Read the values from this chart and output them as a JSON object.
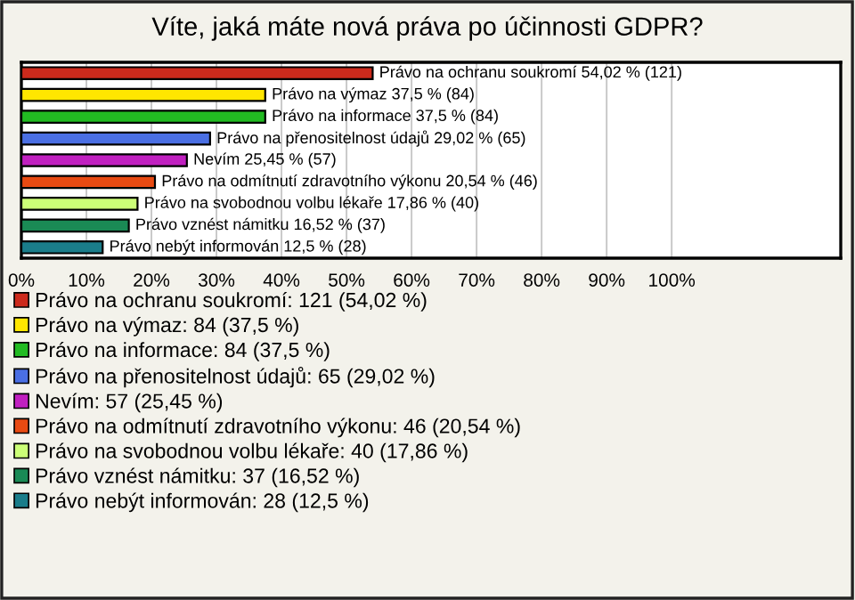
{
  "chart_data": {
    "type": "bar",
    "orientation": "horizontal",
    "title": "Víte, jaká máte nová práva po účinnosti GDPR?",
    "categories": [
      null,
      null,
      null,
      null,
      null,
      null,
      null,
      null,
      null
    ],
    "series": [
      {
        "name": "Právo na ochranu soukromí: 121 (54,02 %)",
        "color": "#cc2a1c",
        "values": [
          54.02,
          null,
          null,
          null,
          null,
          null,
          null,
          null,
          null
        ],
        "value_labels": [
          "Právo na ochranu soukromí 54,02 % (121)",
          null,
          null,
          null,
          null,
          null,
          null,
          null,
          null
        ]
      },
      {
        "name": "Právo na výmaz: 84 (37,5 %)",
        "color": "#ffe600",
        "values": [
          null,
          37.5,
          null,
          null,
          null,
          null,
          null,
          null,
          null
        ],
        "value_labels": [
          null,
          "Právo na výmaz 37,5 % (84)",
          null,
          null,
          null,
          null,
          null,
          null,
          null
        ]
      },
      {
        "name": "Právo na informace: 84 (37,5 %)",
        "color": "#22bb22",
        "values": [
          null,
          null,
          37.5,
          null,
          null,
          null,
          null,
          null,
          null
        ],
        "value_labels": [
          null,
          null,
          "Právo na informace 37,5 % (84)",
          null,
          null,
          null,
          null,
          null,
          null
        ]
      },
      {
        "name": "Právo na přenositelnost údajů: 65 (29,02 %)",
        "color": "#4a6fe3",
        "values": [
          null,
          null,
          null,
          29.02,
          null,
          null,
          null,
          null,
          null
        ],
        "value_labels": [
          null,
          null,
          null,
          "Právo na přenositelnost údajů 29,02 % (65)",
          null,
          null,
          null,
          null,
          null
        ]
      },
      {
        "name": "Nevím: 57 (25,45 %)",
        "color": "#c020c0",
        "values": [
          null,
          null,
          null,
          null,
          25.45,
          null,
          null,
          null,
          null
        ],
        "value_labels": [
          null,
          null,
          null,
          null,
          "Nevím 25,45 % (57)",
          null,
          null,
          null,
          null
        ]
      },
      {
        "name": "Právo na odmítnutí zdravotního výkonu: 46 (20,54 %)",
        "color": "#e84a12",
        "values": [
          null,
          null,
          null,
          null,
          null,
          20.54,
          null,
          null,
          null
        ],
        "value_labels": [
          null,
          null,
          null,
          null,
          null,
          "Právo na odmítnutí zdravotního výkonu 20,54 % (46)",
          null,
          null,
          null
        ]
      },
      {
        "name": "Právo na svobodnou volbu lékaře: 40 (17,86 %)",
        "color": "#ccff77",
        "values": [
          null,
          null,
          null,
          null,
          null,
          null,
          17.86,
          null,
          null
        ],
        "value_labels": [
          null,
          null,
          null,
          null,
          null,
          null,
          "Právo na svobodnou volbu lékaře 17,86 % (40)",
          null,
          null
        ]
      },
      {
        "name": "Právo vznést námitku: 37 (16,52 %)",
        "color": "#1a8a55",
        "values": [
          null,
          null,
          null,
          null,
          null,
          null,
          null,
          16.52,
          null
        ],
        "value_labels": [
          null,
          null,
          null,
          null,
          null,
          null,
          null,
          "Právo vznést námitku 16,52 % (37)",
          null
        ]
      },
      {
        "name": "Právo nebýt informován: 28 (12,5 %)",
        "color": "#1a7d8a",
        "values": [
          null,
          null,
          null,
          null,
          null,
          null,
          null,
          null,
          12.5
        ],
        "value_labels": [
          null,
          null,
          null,
          null,
          null,
          null,
          null,
          null,
          "Právo nebýt informován 12,5 % (28)"
        ]
      }
    ],
    "xlim": [
      0,
      126
    ],
    "xticks": [
      {
        "value": 0,
        "label": "0%"
      },
      {
        "value": 10,
        "label": "10%"
      },
      {
        "value": 20,
        "label": "20%"
      },
      {
        "value": 30,
        "label": "30%"
      },
      {
        "value": 40,
        "label": "40%"
      },
      {
        "value": 50,
        "label": "50%"
      },
      {
        "value": 60,
        "label": "60%"
      },
      {
        "value": 70,
        "label": "70%"
      },
      {
        "value": 80,
        "label": "80%"
      },
      {
        "value": 90,
        "label": "90%"
      },
      {
        "value": 100,
        "label": "100%"
      }
    ],
    "grid": "x",
    "legend": "bottom"
  }
}
